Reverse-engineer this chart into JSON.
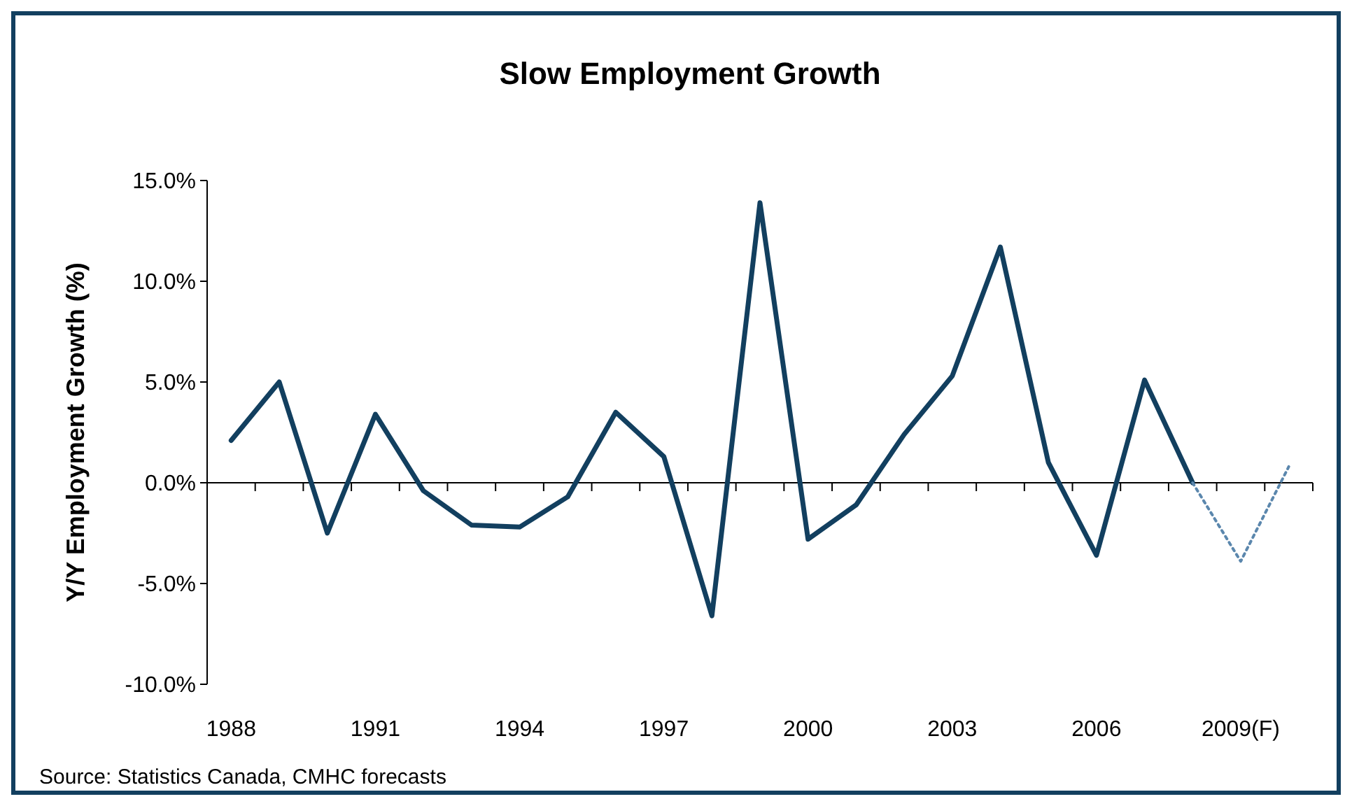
{
  "chart_data": {
    "type": "line",
    "title": "Slow Employment Growth",
    "ylabel": "Y/Y Employment Growth (%)",
    "categories": [
      "1988",
      null,
      null,
      "1991",
      null,
      null,
      "1994",
      null,
      null,
      "1997",
      null,
      null,
      "2000",
      null,
      null,
      "2003",
      null,
      null,
      "2006",
      null,
      null,
      "2009(F)",
      null
    ],
    "series": [
      {
        "color": "#123f5f",
        "line_style": "solid",
        "values": [
          2.1,
          5.0,
          -2.5,
          3.4,
          -0.4,
          -2.1,
          -2.2,
          -0.7,
          3.5,
          1.3,
          -6.6,
          13.9,
          -2.8,
          -1.1,
          2.4,
          5.3,
          11.7,
          1.0,
          -3.6,
          5.1,
          0.0,
          null,
          null
        ]
      },
      {
        "color": "#5b87ad",
        "line_style": "dotted",
        "values": [
          null,
          null,
          null,
          null,
          null,
          null,
          null,
          null,
          null,
          null,
          null,
          null,
          null,
          null,
          null,
          null,
          null,
          null,
          null,
          null,
          0.0,
          -3.9,
          0.8
        ]
      }
    ],
    "ylim": [
      -10,
      15
    ],
    "yticks": [
      {
        "value": 15,
        "label": "15.0%"
      },
      {
        "value": 10,
        "label": "10.0%"
      },
      {
        "value": 5,
        "label": "5.0%"
      },
      {
        "value": 0,
        "label": "0.0%"
      },
      {
        "value": -5,
        "label": "-5.0%"
      },
      {
        "value": -10,
        "label": "-10.0%"
      }
    ],
    "marker": "none",
    "annotations": [
      "Source: Statistics Canada, CMHC forecasts"
    ]
  }
}
